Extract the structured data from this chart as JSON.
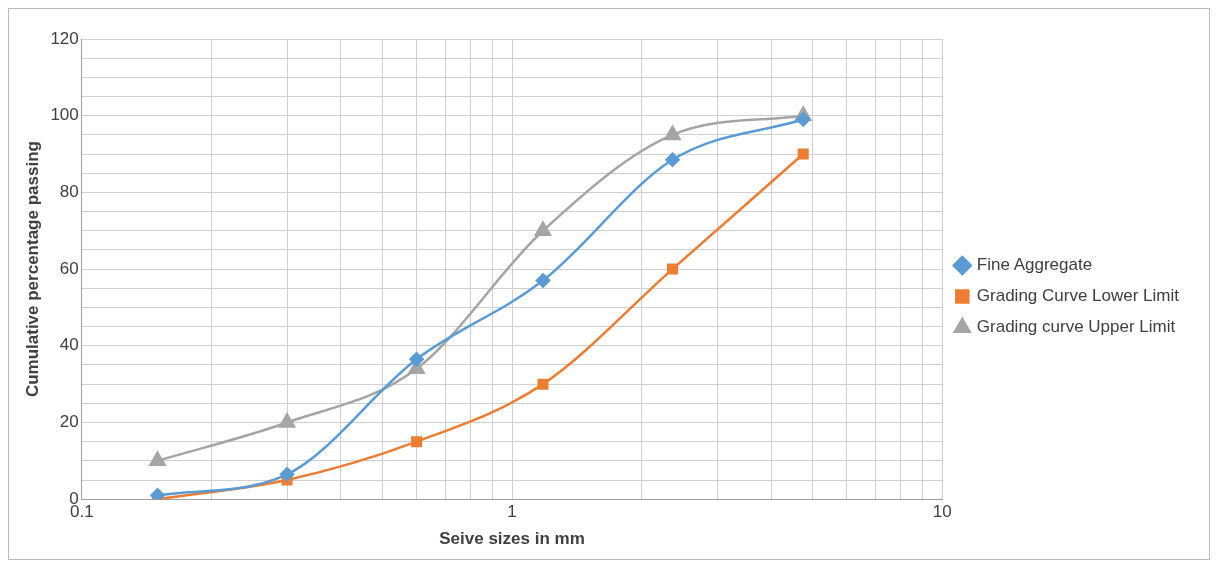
{
  "chart_data": {
    "type": "line",
    "xlabel": "Seive sizes in mm",
    "ylabel": "Cumulative percentage passing",
    "x": [
      0.15,
      0.3,
      0.6,
      1.18,
      2.36,
      4.75
    ],
    "series": [
      {
        "name": "Fine Aggregate",
        "color": "#5b9bd5",
        "marker": "diamond",
        "values": [
          1,
          6.5,
          36.5,
          57,
          88.5,
          99
        ]
      },
      {
        "name": "Grading Curve Lower Limit",
        "color": "#ed7d31",
        "marker": "square",
        "values": [
          0,
          5,
          15,
          30,
          60,
          90
        ]
      },
      {
        "name": "Grading curve Upper Limit",
        "color": "#a5a5a5",
        "marker": "triangle",
        "values": [
          10,
          20,
          34,
          70,
          95,
          100
        ]
      }
    ],
    "log": "x",
    "xlim": [
      0.1,
      10
    ],
    "xticks": [
      0.1,
      {
        "value": 0.2,
        "label": null
      },
      {
        "value": 0.3,
        "label": null
      },
      {
        "value": 0.4,
        "label": null
      },
      {
        "value": 0.5,
        "label": null
      },
      {
        "value": 0.6,
        "label": null
      },
      {
        "value": 0.7,
        "label": null
      },
      {
        "value": 0.8,
        "label": null
      },
      {
        "value": 0.9,
        "label": null
      },
      1,
      {
        "value": 2,
        "label": null
      },
      {
        "value": 3,
        "label": null
      },
      {
        "value": 4,
        "label": null
      },
      {
        "value": 5,
        "label": null
      },
      {
        "value": 6,
        "label": null
      },
      {
        "value": 7,
        "label": null
      },
      {
        "value": 8,
        "label": null
      },
      {
        "value": 9,
        "label": null
      },
      10
    ],
    "ylim": [
      0,
      120
    ],
    "yticks": [
      0,
      {
        "value": 5,
        "label": null
      },
      {
        "value": 10,
        "label": null
      },
      {
        "value": 15,
        "label": null
      },
      20,
      {
        "value": 25,
        "label": null
      },
      {
        "value": 30,
        "label": null
      },
      {
        "value": 35,
        "label": null
      },
      40,
      {
        "value": 45,
        "label": null
      },
      {
        "value": 50,
        "label": null
      },
      {
        "value": 55,
        "label": null
      },
      60,
      {
        "value": 65,
        "label": null
      },
      {
        "value": 70,
        "label": null
      },
      {
        "value": 75,
        "label": null
      },
      80,
      {
        "value": 85,
        "label": null
      },
      {
        "value": 90,
        "label": null
      },
      {
        "value": 95,
        "label": null
      },
      100,
      {
        "value": 105,
        "label": null
      },
      {
        "value": 110,
        "label": null
      },
      {
        "value": 115,
        "label": null
      },
      120
    ],
    "grid": true,
    "legend": "right",
    "line_style": "solid"
  }
}
